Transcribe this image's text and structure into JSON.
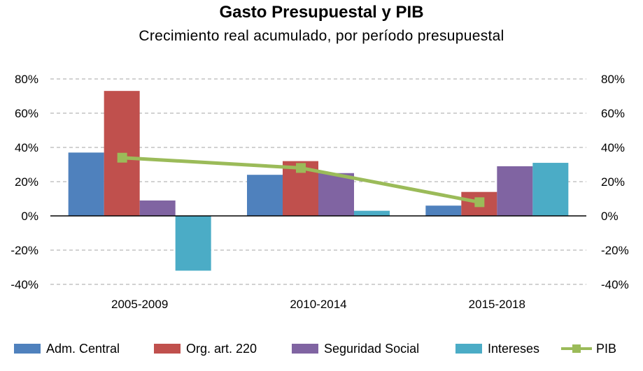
{
  "title": "Gasto Presupuestal y PIB",
  "subtitle": "Crecimiento real acumulado, por período presupuestal",
  "chart_data": {
    "type": "bar",
    "categories": [
      "2005-2009",
      "2010-2014",
      "2015-2018"
    ],
    "series": [
      {
        "name": "Adm. Central",
        "type": "bar",
        "color": "#4F81BD",
        "values": [
          37,
          24,
          6
        ]
      },
      {
        "name": "Org. art. 220",
        "type": "bar",
        "color": "#C0504D",
        "values": [
          73,
          32,
          14
        ]
      },
      {
        "name": "Seguridad Social",
        "type": "bar",
        "color": "#8064A2",
        "values": [
          9,
          25,
          29
        ]
      },
      {
        "name": "Intereses",
        "type": "bar",
        "color": "#4BACC6",
        "values": [
          -32,
          3,
          31
        ]
      },
      {
        "name": "PIB",
        "type": "line",
        "color": "#9BBB59",
        "values": [
          34,
          28,
          8
        ]
      }
    ],
    "yticks": [
      "80%",
      "60%",
      "40%",
      "20%",
      "0%",
      "-20%",
      "-40%"
    ],
    "ylim": [
      -40,
      80
    ],
    "ytick_step": 20,
    "grid": true,
    "legend_position": "bottom"
  }
}
